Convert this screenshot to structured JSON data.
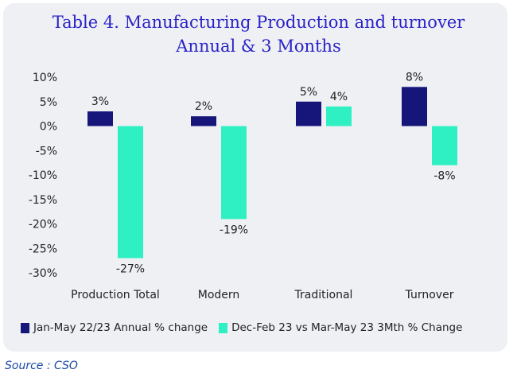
{
  "chart_data": {
    "type": "bar",
    "title_line1": "Table 4. Manufacturing Production and turnover",
    "title_line2": "Annual & 3 Months",
    "categories": [
      "Production Total",
      "Modern",
      "Traditional",
      "Turnover"
    ],
    "series": [
      {
        "name": "Jan-May 22/23 Annual % change",
        "color": "#16167a",
        "values": [
          3,
          2,
          5,
          8
        ],
        "labels": [
          "3%",
          "2%",
          "5%",
          "8%"
        ]
      },
      {
        "name": "Dec-Feb 23 vs Mar-May 23 3Mth % Change",
        "color": "#2ff0c2",
        "values": [
          -27,
          -19,
          4,
          -8
        ],
        "labels": [
          "-27%",
          "-19%",
          "4%",
          "-8%"
        ]
      }
    ],
    "ylim": [
      -30,
      10
    ],
    "yticks": [
      10,
      5,
      0,
      -5,
      -10,
      -15,
      -20,
      -25,
      -30
    ],
    "ytick_labels": [
      "10%",
      "5%",
      "0%",
      "-5%",
      "-10%",
      "-15%",
      "-20%",
      "-25%",
      "-30%"
    ],
    "grid": false,
    "legend_position": "bottom"
  },
  "source": "Source : CSO"
}
